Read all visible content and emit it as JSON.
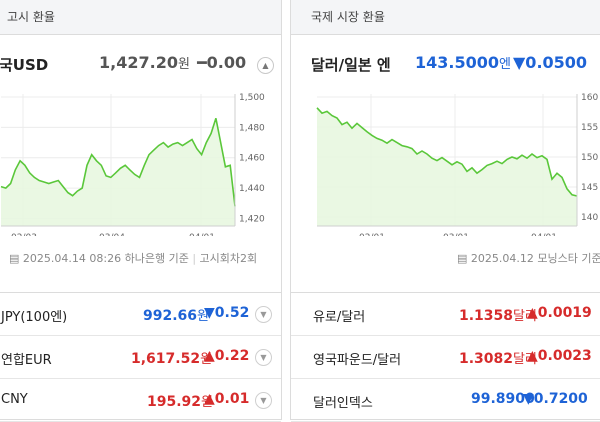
{
  "left": {
    "title": "고시 환율",
    "pair": "국USD",
    "rate": "1,427.20",
    "unit": "원",
    "change": "━0.00",
    "meta_date": "2025.04.14 08:26",
    "meta_source": "하나은행 기준",
    "meta_round": "고시회차2회",
    "rows": [
      {
        "name": "JPY(100엔)",
        "value": "992.66",
        "unit": "원",
        "change": "▼0.52",
        "dir": "down"
      },
      {
        "name": "연합EUR",
        "value": "1,617.52",
        "unit": "원",
        "change": "▲0.22",
        "dir": "up"
      },
      {
        "name": "CNY",
        "value": "195.92",
        "unit": "원",
        "change": "▲0.01",
        "dir": "up"
      }
    ]
  },
  "right": {
    "title": "국제 시장 환율",
    "pair": "달러/일본 엔",
    "rate": "143.5000",
    "unit": "엔",
    "change": "▼0.0500",
    "meta_date": "2025.04.12",
    "meta_source": "모닝스타 기준",
    "rows": [
      {
        "name": "유로/달러",
        "value": "1.1358",
        "unit": "달러",
        "change": "▲0.0019",
        "dir": "up"
      },
      {
        "name": "영국파운드/달러",
        "value": "1.3082",
        "unit": "달러",
        "change": "▲0.0023",
        "dir": "up"
      },
      {
        "name": "달러인덱스",
        "value": "99.8900",
        "unit": "",
        "change": "▼0.7200",
        "dir": "down"
      }
    ]
  },
  "chart_data": [
    {
      "type": "area",
      "x_labels": [
        "02/03",
        "03/04",
        "04/01"
      ],
      "y_ticks": [
        1420,
        1440,
        1460,
        1480,
        1500
      ],
      "ylim": [
        1415,
        1502
      ],
      "color": "#5ac73a",
      "values": [
        1441,
        1440,
        1443,
        1452,
        1458,
        1455,
        1450,
        1447,
        1445,
        1444,
        1443,
        1444,
        1445,
        1441,
        1437,
        1435,
        1438,
        1440,
        1455,
        1462,
        1458,
        1455,
        1448,
        1447,
        1450,
        1453,
        1455,
        1452,
        1449,
        1447,
        1455,
        1462,
        1465,
        1468,
        1470,
        1467,
        1469,
        1470,
        1468,
        1470,
        1472,
        1466,
        1462,
        1470,
        1476,
        1486,
        1470,
        1454,
        1455,
        1428
      ]
    },
    {
      "type": "area",
      "x_labels": [
        "02/01",
        "03/01",
        "04/01"
      ],
      "y_ticks": [
        140,
        145,
        150,
        155,
        160
      ],
      "ylim": [
        138.5,
        160.5
      ],
      "color": "#5ac73a",
      "values": [
        158.2,
        157.3,
        157.6,
        156.9,
        156.5,
        155.4,
        155.8,
        154.8,
        155.6,
        154.9,
        154.2,
        153.6,
        153.1,
        152.8,
        152.3,
        152.9,
        152.4,
        151.9,
        151.7,
        151.4,
        150.5,
        151.0,
        150.5,
        149.8,
        149.4,
        149.9,
        149.3,
        148.7,
        149.2,
        148.8,
        147.6,
        148.2,
        147.3,
        147.9,
        148.6,
        148.9,
        149.3,
        148.9,
        149.6,
        150.0,
        149.7,
        150.3,
        149.8,
        150.5,
        149.9,
        150.2,
        149.6,
        146.3,
        147.3,
        146.6,
        144.7,
        143.7,
        143.5
      ]
    }
  ]
}
